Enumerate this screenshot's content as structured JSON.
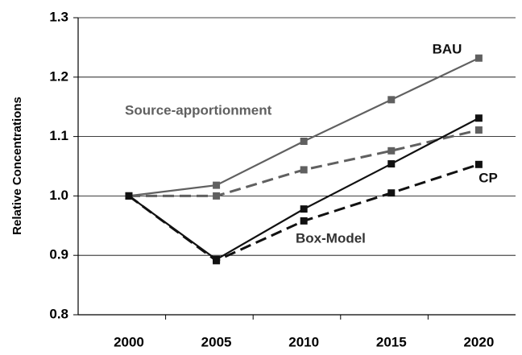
{
  "chart_data": {
    "type": "line",
    "y_label": "Relative Concentrations",
    "categories": [
      "2000",
      "2005",
      "2010",
      "2015",
      "2020"
    ],
    "series": [
      {
        "color": "#606060",
        "dashed": false,
        "values": [
          1.0,
          1.018,
          1.092,
          1.162,
          1.232
        ]
      },
      {
        "color": "#606060",
        "dashed": true,
        "values": [
          1.0,
          1.0,
          1.044,
          1.076,
          1.111
        ]
      },
      {
        "color": "#111111",
        "dashed": false,
        "values": [
          1.0,
          0.893,
          0.978,
          1.054,
          1.131
        ]
      },
      {
        "color": "#111111",
        "dashed": true,
        "values": [
          1.0,
          0.891,
          0.958,
          1.005,
          1.053
        ]
      }
    ],
    "annotations": [
      "BAU",
      "Source-apportionment",
      "Box-Model",
      "CP"
    ],
    "annotation_colors": [
      "#111111",
      "#606060",
      "#333333",
      "#111111"
    ],
    "ylim": [
      0.8,
      1.3
    ],
    "yticks": [
      0.8,
      0.9,
      {
        "value": 1.0,
        "label": "1.0"
      },
      1.1,
      1.2,
      1.3
    ],
    "grid": true
  }
}
